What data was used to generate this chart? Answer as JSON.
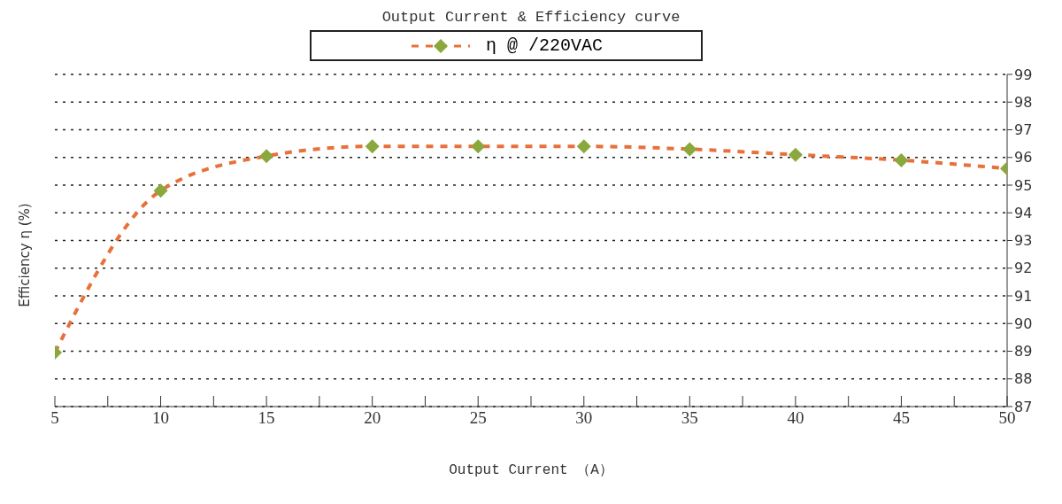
{
  "chart_data": {
    "type": "line",
    "title": "Output Current & Efficiency curve",
    "xlabel": "Output Current （A）",
    "ylabel": "Efficiency η (%)",
    "x": [
      5,
      10,
      15,
      20,
      25,
      30,
      35,
      40,
      45,
      50
    ],
    "series": [
      {
        "name": "η @ /220VAC",
        "color": "#e8703a",
        "colors": [
          "#8aa83c",
          "#8aa83c",
          "#8aa83c",
          "#8aa83c",
          "#8aa83c",
          "#8aa83c",
          "#8aa83c",
          "#8aa83c",
          "#8aa83c",
          "#8aa83c"
        ],
        "values": [
          88.95,
          94.8,
          96.05,
          96.4,
          96.4,
          96.4,
          96.3,
          96.1,
          95.9,
          95.6
        ]
      }
    ],
    "xlim": [
      5,
      50
    ],
    "xticks": [
      5,
      {
        "value": 7.5,
        "label": null
      },
      10,
      {
        "value": 12.5,
        "label": null
      },
      15,
      {
        "value": 17.5,
        "label": null
      },
      20,
      {
        "value": 22.5,
        "label": null
      },
      25,
      {
        "value": 27.5,
        "label": null
      },
      30,
      {
        "value": 32.5,
        "label": null
      },
      35,
      {
        "value": 37.5,
        "label": null
      },
      40,
      {
        "value": 42.5,
        "label": null
      },
      45,
      {
        "value": 47.5,
        "label": null
      },
      50
    ],
    "ylim": [
      87,
      99
    ],
    "yticks": [
      87,
      88,
      89,
      90,
      91,
      92,
      93,
      94,
      95,
      96,
      97,
      98,
      99
    ],
    "grid": "y",
    "legend": "top",
    "marker": "diamond",
    "line_style": "dashed"
  }
}
